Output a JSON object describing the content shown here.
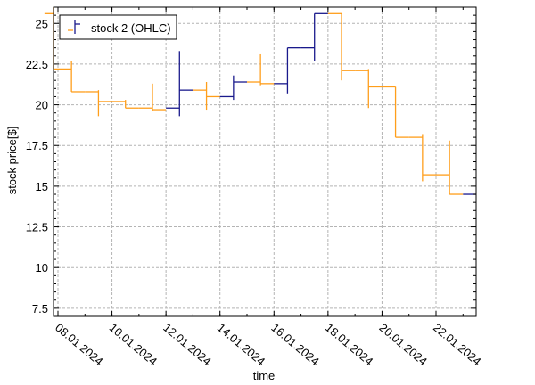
{
  "chart_data": {
    "type": "ohlc",
    "title": "",
    "xlabel": "time",
    "ylabel": "stock price[$]",
    "ylim": [
      7,
      26
    ],
    "yticks": [
      "7.5",
      "10",
      "12.5",
      "15",
      "17.5",
      "20",
      "22.5",
      "25"
    ],
    "xticks": [
      "08.01.2024",
      "10.01.2024",
      "12.01.2024",
      "14.01.2024",
      "16.01.2024",
      "18.01.2024",
      "20.01.2024",
      "22.01.2024"
    ],
    "grid": true,
    "legend_position": "top-left",
    "colors": {
      "up": "#1a1a8c",
      "down": "#ff9e1b"
    },
    "series": [
      {
        "name": "stock 2 (OHLC)",
        "candles": [
          {
            "date": "07.01.2024",
            "open": 25.6,
            "high": 26.0,
            "low": 22.2,
            "close": 22.2,
            "up": false
          },
          {
            "date": "08.01.2024",
            "open": 22.2,
            "high": 22.7,
            "low": 20.8,
            "close": 20.8,
            "up": false
          },
          {
            "date": "09.01.2024",
            "open": 20.8,
            "high": 20.9,
            "low": 19.3,
            "close": 20.2,
            "up": false
          },
          {
            "date": "10.01.2024",
            "open": 20.2,
            "high": 20.3,
            "low": 19.8,
            "close": 19.8,
            "up": false
          },
          {
            "date": "11.01.2024",
            "open": 19.8,
            "high": 21.3,
            "low": 19.6,
            "close": 19.7,
            "up": false
          },
          {
            "date": "12.01.2024",
            "open": 19.8,
            "high": 23.3,
            "low": 19.3,
            "close": 20.9,
            "up": true
          },
          {
            "date": "13.01.2024",
            "open": 20.9,
            "high": 21.4,
            "low": 19.7,
            "close": 20.5,
            "up": false
          },
          {
            "date": "14.01.2024",
            "open": 20.5,
            "high": 21.8,
            "low": 20.3,
            "close": 21.4,
            "up": true
          },
          {
            "date": "15.01.2024",
            "open": 21.4,
            "high": 23.1,
            "low": 21.2,
            "close": 21.3,
            "up": false
          },
          {
            "date": "16.01.2024",
            "open": 21.3,
            "high": 23.5,
            "low": 20.7,
            "close": 23.5,
            "up": true
          },
          {
            "date": "17.01.2024",
            "open": 23.5,
            "high": 25.6,
            "low": 22.7,
            "close": 25.6,
            "up": true
          },
          {
            "date": "18.01.2024",
            "open": 25.6,
            "high": 25.6,
            "low": 21.5,
            "close": 22.1,
            "up": false
          },
          {
            "date": "19.01.2024",
            "open": 22.1,
            "high": 22.2,
            "low": 19.8,
            "close": 21.1,
            "up": false
          },
          {
            "date": "20.01.2024",
            "open": 21.1,
            "high": 21.1,
            "low": 18.0,
            "close": 18.0,
            "up": false
          },
          {
            "date": "21.01.2024",
            "open": 18.0,
            "high": 18.2,
            "low": 15.3,
            "close": 15.7,
            "up": false
          },
          {
            "date": "22.01.2024",
            "open": 15.7,
            "high": 17.8,
            "low": 14.5,
            "close": 14.5,
            "up": false
          },
          {
            "date": "23.01.2024",
            "open": 14.5,
            "high": 14.5,
            "low": 14.5,
            "close": 14.5,
            "up": true
          }
        ]
      }
    ]
  }
}
